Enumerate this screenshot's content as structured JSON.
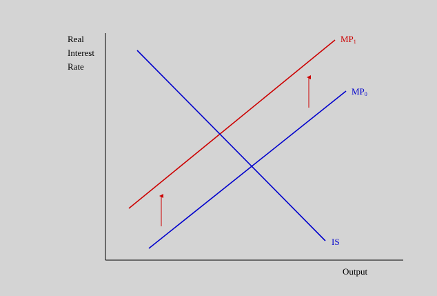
{
  "axes": {
    "y_label": [
      "Real",
      "Interest",
      "Rate"
    ],
    "x_label": "Output"
  },
  "curves": [
    {
      "label": "MP",
      "subscript": "1"
    },
    {
      "label": "MP",
      "subscript": "0"
    },
    {
      "label": "IS"
    }
  ]
}
